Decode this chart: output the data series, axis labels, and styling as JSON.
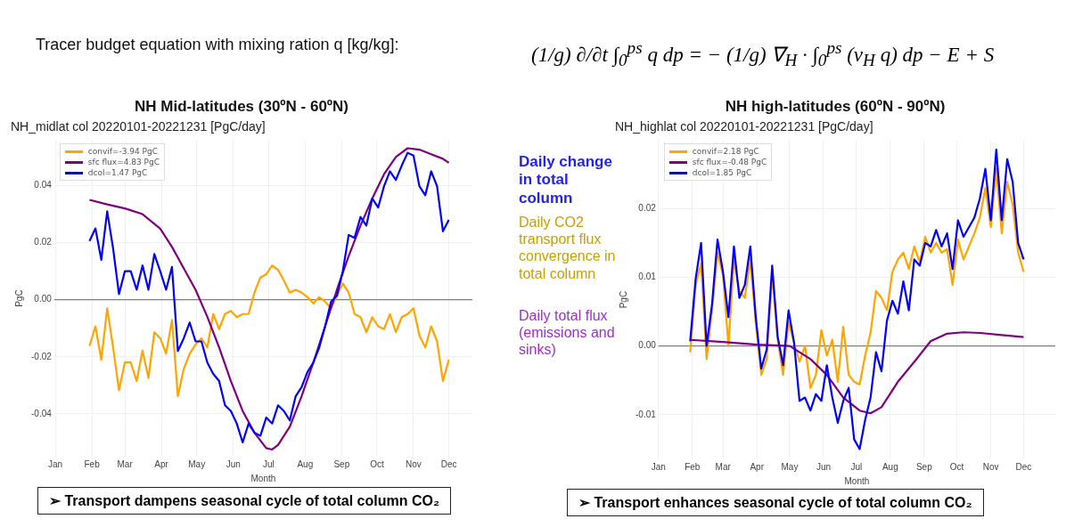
{
  "chart_data": [
    {
      "type": "line",
      "title": "NH Mid-latitudes (30ºN - 60ºN)",
      "subtitle": "NH_midlat col 20220101-20221231 [PgC/day]",
      "xlabel": "Month",
      "ylabel": "PgC",
      "x": [
        "2022-01-30",
        "2022-02-04",
        "2022-02-09",
        "2022-02-14",
        "2022-02-19",
        "2022-02-24",
        "2022-03-01",
        "2022-03-06",
        "2022-03-11",
        "2022-03-16",
        "2022-03-21",
        "2022-03-26",
        "2022-03-31",
        "2022-04-05",
        "2022-04-10",
        "2022-04-15",
        "2022-04-20",
        "2022-04-25",
        "2022-04-30",
        "2022-05-05",
        "2022-05-10",
        "2022-05-15",
        "2022-05-20",
        "2022-05-25",
        "2022-05-30",
        "2022-06-04",
        "2022-06-09",
        "2022-06-14",
        "2022-06-19",
        "2022-06-24",
        "2022-06-29",
        "2022-07-04",
        "2022-07-09",
        "2022-07-14",
        "2022-07-19",
        "2022-07-24",
        "2022-07-29",
        "2022-08-03",
        "2022-08-08",
        "2022-08-13",
        "2022-08-18",
        "2022-08-23",
        "2022-08-28",
        "2022-09-02",
        "2022-09-07",
        "2022-09-12",
        "2022-09-17",
        "2022-09-22",
        "2022-09-27",
        "2022-10-02",
        "2022-10-07",
        "2022-10-12",
        "2022-10-17",
        "2022-10-22",
        "2022-10-27",
        "2022-11-01",
        "2022-11-06",
        "2022-11-11",
        "2022-11-16",
        "2022-11-21",
        "2022-11-26",
        "2022-12-01"
      ],
      "series": [
        {
          "name": "convif=-3.94 PgC",
          "color": "#ffa500",
          "values": [
            -0.0162,
            -0.0093,
            -0.021,
            -0.003,
            -0.0167,
            -0.0317,
            -0.022,
            -0.022,
            -0.0285,
            -0.0178,
            -0.0274,
            -0.0114,
            -0.0135,
            -0.0189,
            -0.0071,
            -0.0338,
            -0.0242,
            -0.0189,
            -0.0157,
            -0.0135,
            -0.0167,
            -0.005,
            -0.0103,
            -0.005,
            -0.0039,
            -0.0061,
            -0.005,
            -0.005,
            0.0025,
            0.0078,
            0.0089,
            0.012,
            0.0105,
            0.0067,
            0.0025,
            0.0035,
            0.0025,
            0.0009,
            -0.0013,
            0.0009,
            -0.0007,
            -0.003,
            0.0014,
            0.0057,
            0.0025,
            -0.005,
            -0.0061,
            -0.0114,
            -0.0061,
            -0.0093,
            -0.0103,
            -0.005,
            -0.0114,
            -0.0061,
            -0.005,
            -0.003,
            -0.0125,
            -0.0167,
            -0.0093,
            -0.0146,
            -0.0285,
            -0.021
          ]
        },
        {
          "name": "sfc flux=4.83 PgC",
          "color": "#800080",
          "x": [
            "2022-01-30",
            "2022-02-14",
            "2022-03-01",
            "2022-03-16",
            "2022-03-31",
            "2022-04-10",
            "2022-04-20",
            "2022-04-30",
            "2022-05-10",
            "2022-05-20",
            "2022-05-30",
            "2022-06-09",
            "2022-06-19",
            "2022-06-29",
            "2022-07-04",
            "2022-07-09",
            "2022-07-19",
            "2022-07-29",
            "2022-08-08",
            "2022-08-18",
            "2022-08-28",
            "2022-09-07",
            "2022-09-17",
            "2022-09-27",
            "2022-10-07",
            "2022-10-17",
            "2022-10-27",
            "2022-11-06",
            "2022-11-16",
            "2022-11-26",
            "2022-12-01"
          ],
          "values": [
            0.035,
            0.0334,
            0.032,
            0.03,
            0.0249,
            0.0185,
            0.011,
            0.0035,
            -0.006,
            -0.0167,
            -0.0285,
            -0.039,
            -0.0466,
            -0.052,
            -0.0525,
            -0.0509,
            -0.0445,
            -0.0338,
            -0.022,
            -0.0093,
            0.0035,
            0.0153,
            0.026,
            0.0355,
            0.044,
            0.05,
            0.0531,
            0.0526,
            0.051,
            0.0494,
            0.048
          ]
        },
        {
          "name": "dcol=1.47 PgC",
          "color": "#0000ff",
          "values": [
            0.0206,
            0.025,
            0.014,
            0.031,
            0.018,
            0.002,
            0.01,
            0.01,
            0.0035,
            0.012,
            0.0035,
            0.016,
            0.01,
            0.0035,
            0.0115,
            -0.018,
            -0.0135,
            -0.008,
            -0.0146,
            -0.0146,
            -0.022,
            -0.026,
            -0.0285,
            -0.037,
            -0.039,
            -0.0434,
            -0.05,
            -0.0434,
            -0.0466,
            -0.0477,
            -0.0413,
            -0.0434,
            -0.037,
            -0.039,
            -0.0423,
            -0.0338,
            -0.0306,
            -0.0253,
            -0.022,
            -0.0167,
            -0.0093,
            -0.0007,
            0.0014,
            0.01,
            0.0227,
            0.0217,
            0.029,
            0.026,
            0.0355,
            0.0323,
            0.0398,
            0.045,
            0.042,
            0.047,
            0.0515,
            0.0505,
            0.0398,
            0.0366,
            0.045,
            0.0398,
            0.024,
            0.028
          ]
        }
      ],
      "xlim": [
        "2021-12-31",
        "2022-12-21"
      ],
      "xticks": [
        {
          "value": "2022-01-01",
          "label": "Jan"
        },
        {
          "value": "2022-02-01",
          "label": "Feb"
        },
        {
          "value": "2022-03-01",
          "label": "Mar"
        },
        {
          "value": "2022-04-01",
          "label": "Apr"
        },
        {
          "value": "2022-05-01",
          "label": "May"
        },
        {
          "value": "2022-06-01",
          "label": "Jun"
        },
        {
          "value": "2022-07-01",
          "label": "Jul"
        },
        {
          "value": "2022-08-01",
          "label": "Aug"
        },
        {
          "value": "2022-09-01",
          "label": "Sep"
        },
        {
          "value": "2022-10-01",
          "label": "Oct"
        },
        {
          "value": "2022-11-01",
          "label": "Nov"
        },
        {
          "value": "2022-12-01",
          "label": "Dec"
        }
      ],
      "ylim": [
        -0.055,
        0.056
      ],
      "yticks": [
        -0.04,
        -0.02,
        {
          "value": 0,
          "label": "0.00"
        },
        0.02,
        0.04
      ],
      "ref_lines": [
        {
          "axis": "y",
          "value": 0,
          "color": "#808080"
        }
      ],
      "grid": true,
      "legend": "top left",
      "annotations": [
        "Tracer budget equation with mixing ration q [kg/kg]:",
        "(1/g) ∂/∂t ∫$_{0}$$^{ps}$ q dp = − (1/g) ∇$_{H}$ · ∫$_{0}$$^{ps}$ (v$_{H}$ q) dp − E + S",
        "Daily change in total column",
        "Daily CO2 transport flux convergence in total column",
        "Daily total flux (emissions and sinks)",
        "➢  Transport dampens seasonal cycle of total column CO₂"
      ]
    },
    {
      "type": "line",
      "title": "NH high-latitudes (60ºN - 90ºN)",
      "subtitle": "NH_highlat col 20220101-20221231 [PgC/day]",
      "xlabel": "Month",
      "ylabel": "PgC",
      "x": [
        "2022-01-30",
        "2022-02-04",
        "2022-02-09",
        "2022-02-14",
        "2022-02-19",
        "2022-02-24",
        "2022-03-01",
        "2022-03-06",
        "2022-03-11",
        "2022-03-16",
        "2022-03-21",
        "2022-03-26",
        "2022-03-31",
        "2022-04-05",
        "2022-04-10",
        "2022-04-15",
        "2022-04-20",
        "2022-04-25",
        "2022-04-30",
        "2022-05-05",
        "2022-05-10",
        "2022-05-15",
        "2022-05-20",
        "2022-05-25",
        "2022-05-30",
        "2022-06-04",
        "2022-06-09",
        "2022-06-14",
        "2022-06-19",
        "2022-06-24",
        "2022-06-29",
        "2022-07-04",
        "2022-07-09",
        "2022-07-14",
        "2022-07-19",
        "2022-07-24",
        "2022-07-29",
        "2022-08-03",
        "2022-08-08",
        "2022-08-13",
        "2022-08-18",
        "2022-08-23",
        "2022-08-28",
        "2022-09-02",
        "2022-09-07",
        "2022-09-12",
        "2022-09-17",
        "2022-09-22",
        "2022-09-27",
        "2022-10-02",
        "2022-10-07",
        "2022-10-12",
        "2022-10-17",
        "2022-10-22",
        "2022-10-27",
        "2022-11-01",
        "2022-11-06",
        "2022-11-11",
        "2022-11-16",
        "2022-11-21",
        "2022-11-26",
        "2022-12-01"
      ],
      "series": [
        {
          "name": "convif=2.18 PgC",
          "color": "#ffa500",
          "values": [
            -0.0009,
            0.0089,
            0.012,
            -0.0019,
            0.0052,
            0.0136,
            0.0103,
            0.0,
            0.0125,
            0.008,
            0.007,
            0.0126,
            0.0033,
            -0.0042,
            -0.0019,
            0.0105,
            0.0009,
            -0.0042,
            0.0035,
            0.0005,
            -0.0023,
            0.0,
            -0.0061,
            -0.0042,
            0.0023,
            -0.0014,
            0.0009,
            -0.0052,
            0.0028,
            -0.0042,
            -0.0052,
            -0.0056,
            -0.0014,
            0.0019,
            0.008,
            0.007,
            0.0052,
            0.0108,
            0.0126,
            0.0136,
            0.0112,
            0.0145,
            0.0122,
            0.0159,
            0.0136,
            0.015,
            0.0136,
            0.0141,
            0.0089,
            0.0155,
            0.0126,
            0.0145,
            0.0164,
            0.0187,
            0.023,
            0.0173,
            0.0258,
            0.0164,
            0.0239,
            0.0206,
            0.0136,
            0.0108
          ]
        },
        {
          "name": "sfc flux=-0.48 PgC",
          "color": "#800080",
          "x": [
            "2022-01-30",
            "2022-03-01",
            "2022-04-01",
            "2022-05-01",
            "2022-05-20",
            "2022-06-04",
            "2022-06-19",
            "2022-07-04",
            "2022-07-14",
            "2022-07-24",
            "2022-08-08",
            "2022-08-23",
            "2022-09-07",
            "2022-09-22",
            "2022-10-07",
            "2022-10-22",
            "2022-11-11",
            "2022-12-01"
          ],
          "values": [
            0.0009,
            0.0006,
            0.0002,
            0.0,
            -0.0019,
            -0.0042,
            -0.0075,
            -0.0094,
            -0.0098,
            -0.0089,
            -0.0052,
            -0.0023,
            0.0007,
            0.0018,
            0.002,
            0.0019,
            0.0016,
            0.0013
          ]
        },
        {
          "name": "dcol=1.85 PgC",
          "color": "#0000ff",
          "values": [
            0.0007,
            0.0098,
            0.015,
            0.0,
            0.0061,
            0.0155,
            0.0108,
            0.0042,
            0.0145,
            0.007,
            0.0089,
            0.0145,
            0.0042,
            -0.0033,
            -0.0005,
            0.0117,
            0.0014,
            -0.0028,
            0.0052,
            0.0005,
            -0.008,
            -0.0075,
            -0.0094,
            -0.007,
            -0.008,
            -0.0028,
            -0.0075,
            -0.0112,
            -0.008,
            -0.0061,
            -0.0136,
            -0.015,
            -0.0108,
            -0.0075,
            -0.0009,
            -0.0037,
            0.0037,
            0.0066,
            0.0047,
            0.0094,
            0.0052,
            0.0126,
            0.0117,
            0.015,
            0.0145,
            0.0169,
            0.0145,
            0.0164,
            0.0112,
            0.0183,
            0.0159,
            0.0173,
            0.0187,
            0.0215,
            0.0258,
            0.0183,
            0.0286,
            0.0183,
            0.0272,
            0.0239,
            0.015,
            0.0126
          ]
        }
      ],
      "xlim": [
        "2022-01-01",
        "2022-12-30"
      ],
      "xticks": [
        {
          "value": "2022-01-01",
          "label": "Jan"
        },
        {
          "value": "2022-02-01",
          "label": "Feb"
        },
        {
          "value": "2022-03-01",
          "label": "Mar"
        },
        {
          "value": "2022-04-01",
          "label": "Apr"
        },
        {
          "value": "2022-05-01",
          "label": "May"
        },
        {
          "value": "2022-06-01",
          "label": "Jun"
        },
        {
          "value": "2022-07-01",
          "label": "Jul"
        },
        {
          "value": "2022-08-01",
          "label": "Aug"
        },
        {
          "value": "2022-09-01",
          "label": "Sep"
        },
        {
          "value": "2022-10-01",
          "label": "Oct"
        },
        {
          "value": "2022-11-01",
          "label": "Nov"
        },
        {
          "value": "2022-12-01",
          "label": "Dec"
        }
      ],
      "ylim": [
        -0.0165,
        0.03
      ],
      "yticks": [
        -0.01,
        {
          "value": 0,
          "label": "0.00"
        },
        0.01,
        0.02
      ],
      "ref_lines": [
        {
          "axis": "y",
          "value": 0,
          "color": "#808080"
        }
      ],
      "grid": true,
      "legend": "top left",
      "annotations": [
        "➢  Transport enhances seasonal cycle of total column CO₂"
      ]
    }
  ]
}
